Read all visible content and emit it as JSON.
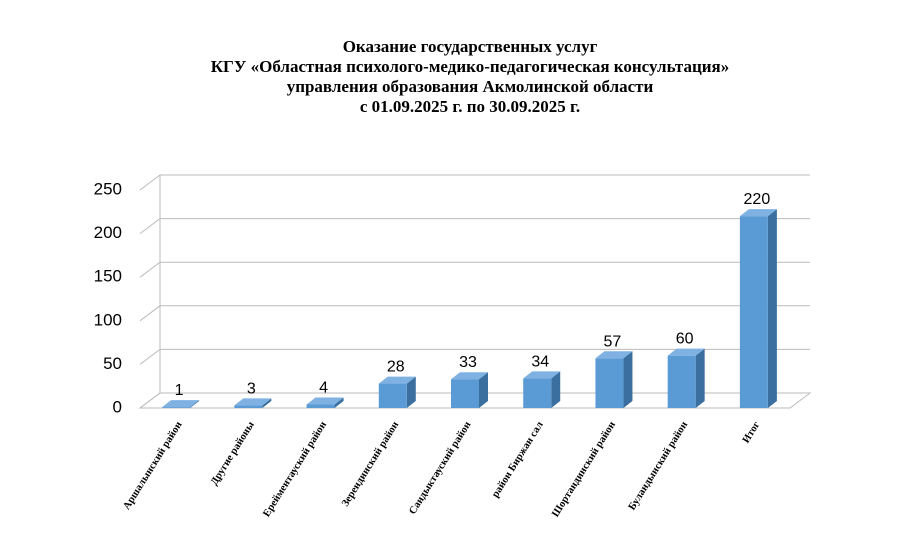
{
  "chart_data": {
    "type": "bar3d",
    "title": [
      "Оказание государственных услуг",
      "КГУ «Областная психолого-медико-педагогическая консультация»",
      "управления образования Акмолинской области",
      "с 01.09.2025 г. по 30.09.2025 г."
    ],
    "categories": [
      "Аршалынский район",
      "Другие районы",
      "Ерейментауский район",
      "Зерендинский район",
      "Сандыктауский район",
      "район Биржан сал",
      "Шортандинский район",
      "Буландынский район",
      "Итог"
    ],
    "values": [
      1,
      3,
      4,
      28,
      33,
      34,
      57,
      60,
      220
    ],
    "color": "#5b9bd5",
    "ylim": [
      0,
      250
    ],
    "yticks": [
      0,
      50,
      100,
      150,
      200,
      250
    ],
    "grid": true,
    "data_labels": true
  }
}
